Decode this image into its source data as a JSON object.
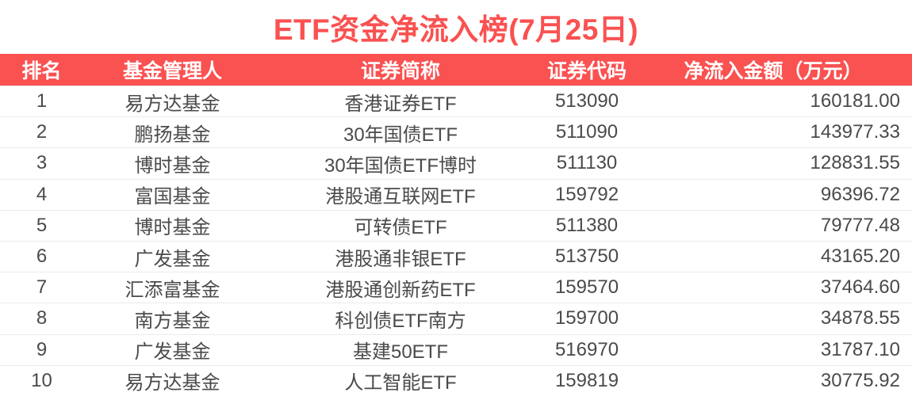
{
  "page": {
    "title": "ETF资金净流入榜(7月25日)"
  },
  "colors": {
    "accent": "#fa5151",
    "header_text": "#ffffff",
    "cell_text": "#4a4a4a",
    "divider": "#ebebf0",
    "background": "#ffffff"
  },
  "table": {
    "headers": {
      "rank": "排名",
      "manager": "基金管理人",
      "name": "证券简称",
      "code": "证券代码",
      "amount": "净流入金额（万元）"
    },
    "rows": [
      {
        "rank": "1",
        "manager": "易方达基金",
        "name": "香港证券ETF",
        "code": "513090",
        "amount": "160181.00"
      },
      {
        "rank": "2",
        "manager": "鹏扬基金",
        "name": "30年国债ETF",
        "code": "511090",
        "amount": "143977.33"
      },
      {
        "rank": "3",
        "manager": "博时基金",
        "name": "30年国债ETF博时",
        "code": "511130",
        "amount": "128831.55"
      },
      {
        "rank": "4",
        "manager": "富国基金",
        "name": "港股通互联网ETF",
        "code": "159792",
        "amount": "96396.72"
      },
      {
        "rank": "5",
        "manager": "博时基金",
        "name": "可转债ETF",
        "code": "511380",
        "amount": "79777.48"
      },
      {
        "rank": "6",
        "manager": "广发基金",
        "name": "港股通非银ETF",
        "code": "513750",
        "amount": "43165.20"
      },
      {
        "rank": "7",
        "manager": "汇添富基金",
        "name": "港股通创新药ETF",
        "code": "159570",
        "amount": "37464.60"
      },
      {
        "rank": "8",
        "manager": "南方基金",
        "name": "科创债ETF南方",
        "code": "159700",
        "amount": "34878.55"
      },
      {
        "rank": "9",
        "manager": "广发基金",
        "name": "基建50ETF",
        "code": "516970",
        "amount": "31787.10"
      },
      {
        "rank": "10",
        "manager": "易方达基金",
        "name": "人工智能ETF",
        "code": "159819",
        "amount": "30775.92"
      }
    ]
  },
  "chart_data": {
    "type": "table",
    "title": "ETF资金净流入榜(7月25日)",
    "columns": [
      "排名",
      "基金管理人",
      "证券简称",
      "证券代码",
      "净流入金额（万元）"
    ],
    "rows": [
      [
        "1",
        "易方达基金",
        "香港证券ETF",
        "513090",
        160181.0
      ],
      [
        "2",
        "鹏扬基金",
        "30年国债ETF",
        "511090",
        143977.33
      ],
      [
        "3",
        "博时基金",
        "30年国债ETF博时",
        "511130",
        128831.55
      ],
      [
        "4",
        "富国基金",
        "港股通互联网ETF",
        "159792",
        96396.72
      ],
      [
        "5",
        "博时基金",
        "可转债ETF",
        "511380",
        79777.48
      ],
      [
        "6",
        "广发基金",
        "港股通非银ETF",
        "513750",
        43165.2
      ],
      [
        "7",
        "汇添富基金",
        "港股通创新药ETF",
        "159570",
        37464.6
      ],
      [
        "8",
        "南方基金",
        "科创债ETF南方",
        "159700",
        34878.55
      ],
      [
        "9",
        "广发基金",
        "基建50ETF",
        "516970",
        31787.1
      ],
      [
        "10",
        "易方达基金",
        "人工智能ETF",
        "159819",
        30775.92
      ]
    ]
  }
}
